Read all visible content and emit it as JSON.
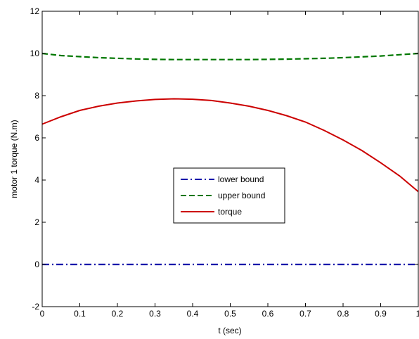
{
  "chart_data": {
    "type": "line",
    "title": "",
    "xlabel": "t (sec)",
    "ylabel": "motor 1 torque (N.m)",
    "xlim": [
      0,
      1
    ],
    "ylim": [
      -2,
      12
    ],
    "xticks": [
      0,
      0.1,
      0.2,
      0.3,
      0.4,
      0.5,
      0.6,
      0.7,
      0.8,
      0.9,
      1
    ],
    "xtick_labels": [
      "0",
      "0.1",
      "0.2",
      "0.3",
      "0.4",
      "0.5",
      "0.6",
      "0.7",
      "0.8",
      "0.9",
      "1"
    ],
    "yticks": [
      -2,
      0,
      2,
      4,
      6,
      8,
      10,
      12
    ],
    "ytick_labels": [
      "-2",
      "0",
      "2",
      "4",
      "6",
      "8",
      "10",
      "12"
    ],
    "grid": false,
    "legend_position": "center",
    "x": [
      0,
      0.05,
      0.1,
      0.15,
      0.2,
      0.25,
      0.3,
      0.35,
      0.4,
      0.45,
      0.5,
      0.55,
      0.6,
      0.65,
      0.7,
      0.75,
      0.8,
      0.85,
      0.9,
      0.95,
      1
    ],
    "series": [
      {
        "name": "lower bound",
        "color": "#0000aa",
        "style": "dashdot",
        "values": [
          0,
          0,
          0,
          0,
          0,
          0,
          0,
          0,
          0,
          0,
          0,
          0,
          0,
          0,
          0,
          0,
          0,
          0,
          0,
          0,
          0
        ]
      },
      {
        "name": "upper bound",
        "color": "#007700",
        "style": "dashed",
        "values": [
          10.0,
          9.9,
          9.85,
          9.8,
          9.77,
          9.74,
          9.72,
          9.71,
          9.71,
          9.71,
          9.71,
          9.71,
          9.72,
          9.73,
          9.75,
          9.77,
          9.8,
          9.84,
          9.88,
          9.94,
          10.0
        ]
      },
      {
        "name": "torque",
        "color": "#cc0000",
        "style": "solid",
        "values": [
          6.65,
          7.0,
          7.3,
          7.5,
          7.65,
          7.75,
          7.82,
          7.85,
          7.83,
          7.77,
          7.65,
          7.5,
          7.3,
          7.05,
          6.75,
          6.35,
          5.9,
          5.4,
          4.82,
          4.2,
          3.45
        ]
      }
    ]
  }
}
